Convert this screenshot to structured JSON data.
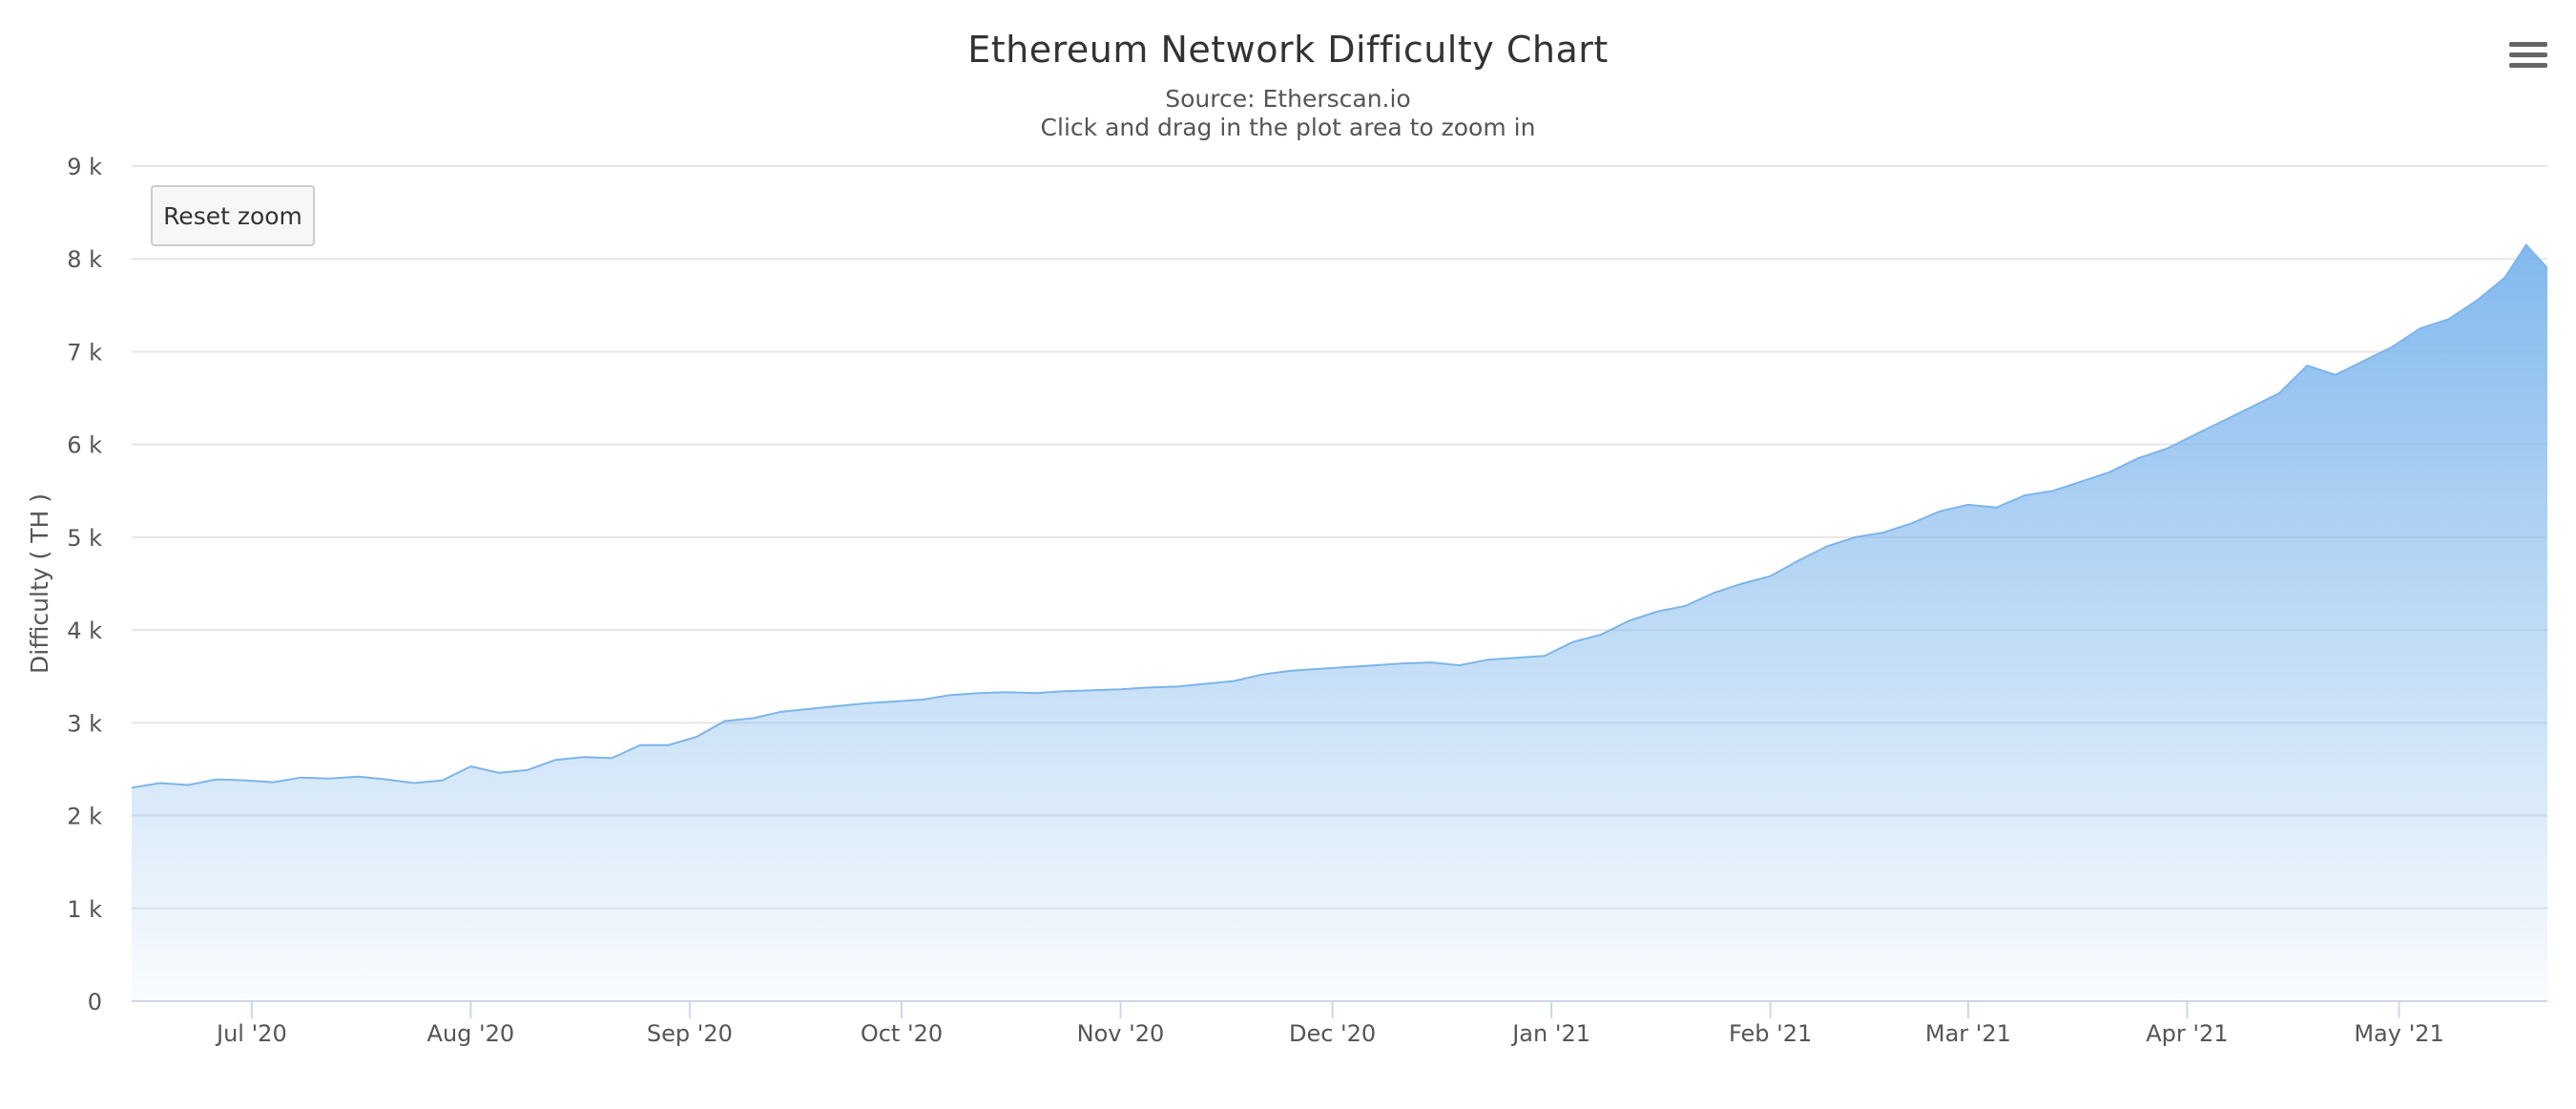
{
  "menu_icon": "hamburger-icon",
  "reset_zoom_label": "Reset zoom",
  "colors": {
    "area_top": "#7cb5ec",
    "line": "#7cb5ec",
    "grid": "#e6e6e6",
    "axis": "#ccd6eb"
  },
  "chart_data": {
    "type": "area",
    "title": "Ethereum Network Difficulty Chart",
    "subtitle_lines": [
      "Source: Etherscan.io",
      "Click and drag in the plot area to zoom in"
    ],
    "xlabel": "",
    "ylabel": "Difficulty ( TH )",
    "ylim": [
      0,
      9000
    ],
    "y_ticks": [
      0,
      1000,
      2000,
      3000,
      4000,
      5000,
      6000,
      7000,
      8000,
      9000
    ],
    "y_tick_labels": [
      "0",
      "1 k",
      "2 k",
      "3 k",
      "4 k",
      "5 k",
      "6 k",
      "7 k",
      "8 k",
      "9 k"
    ],
    "xlim": [
      "2020-06-14",
      "2021-05-22"
    ],
    "x_ticks": [
      "2020-07-01",
      "2020-08-01",
      "2020-09-01",
      "2020-10-01",
      "2020-11-01",
      "2020-12-01",
      "2021-01-01",
      "2021-02-01",
      "2021-03-01",
      "2021-04-01",
      "2021-05-01"
    ],
    "x_tick_labels": [
      "Jul '20",
      "Aug '20",
      "Sep '20",
      "Oct '20",
      "Nov '20",
      "Dec '20",
      "Jan '21",
      "Feb '21",
      "Mar '21",
      "Apr '21",
      "May '21"
    ],
    "grid": true,
    "legend": "none",
    "series": [
      {
        "x": [
          "2020-06-14",
          "2020-06-18",
          "2020-06-22",
          "2020-06-26",
          "2020-06-30",
          "2020-07-04",
          "2020-07-08",
          "2020-07-12",
          "2020-07-16",
          "2020-07-20",
          "2020-07-24",
          "2020-07-28",
          "2020-08-01",
          "2020-08-05",
          "2020-08-09",
          "2020-08-13",
          "2020-08-17",
          "2020-08-21",
          "2020-08-25",
          "2020-08-29",
          "2020-09-02",
          "2020-09-06",
          "2020-09-10",
          "2020-09-14",
          "2020-09-18",
          "2020-09-22",
          "2020-09-26",
          "2020-09-30",
          "2020-10-04",
          "2020-10-08",
          "2020-10-12",
          "2020-10-16",
          "2020-10-20",
          "2020-10-24",
          "2020-10-28",
          "2020-11-01",
          "2020-11-05",
          "2020-11-09",
          "2020-11-13",
          "2020-11-17",
          "2020-11-21",
          "2020-11-25",
          "2020-11-29",
          "2020-12-03",
          "2020-12-07",
          "2020-12-11",
          "2020-12-15",
          "2020-12-19",
          "2020-12-23",
          "2020-12-27",
          "2020-12-31",
          "2021-01-04",
          "2021-01-08",
          "2021-01-12",
          "2021-01-16",
          "2021-01-20",
          "2021-01-24",
          "2021-01-28",
          "2021-02-01",
          "2021-02-05",
          "2021-02-09",
          "2021-02-13",
          "2021-02-17",
          "2021-02-21",
          "2021-02-25",
          "2021-03-01",
          "2021-03-05",
          "2021-03-09",
          "2021-03-13",
          "2021-03-17",
          "2021-03-21",
          "2021-03-25",
          "2021-03-29",
          "2021-04-02",
          "2021-04-06",
          "2021-04-10",
          "2021-04-14",
          "2021-04-18",
          "2021-04-22",
          "2021-04-26",
          "2021-04-30",
          "2021-05-04",
          "2021-05-08",
          "2021-05-12",
          "2021-05-16",
          "2021-05-19",
          "2021-05-22"
        ],
        "values": [
          2300,
          2350,
          2330,
          2390,
          2380,
          2360,
          2410,
          2400,
          2420,
          2390,
          2350,
          2380,
          2530,
          2460,
          2490,
          2600,
          2630,
          2620,
          2760,
          2760,
          2850,
          3020,
          3050,
          3120,
          3150,
          3180,
          3210,
          3230,
          3250,
          3300,
          3320,
          3330,
          3320,
          3340,
          3350,
          3360,
          3380,
          3390,
          3420,
          3450,
          3520,
          3560,
          3580,
          3600,
          3620,
          3640,
          3650,
          3620,
          3680,
          3700,
          3720,
          3870,
          3950,
          4100,
          4200,
          4260,
          4400,
          4500,
          4580,
          4750,
          4900,
          5000,
          5050,
          5150,
          5280,
          5350,
          5320,
          5450,
          5500,
          5600,
          5700,
          5850,
          5950,
          6100,
          6250,
          6400,
          6550,
          6850,
          6750,
          6900,
          7050,
          7250,
          7350,
          7550,
          7800,
          8150,
          7900
        ]
      }
    ]
  }
}
